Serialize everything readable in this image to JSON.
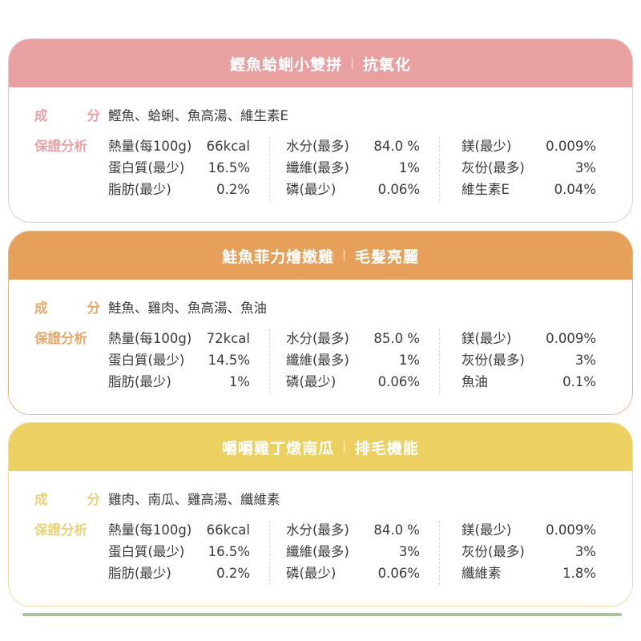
{
  "cards": [
    {
      "title": "鰹魚蛤蜊小雙拼",
      "separator": "|",
      "subtitle": "抗氧化",
      "colors": {
        "accent": "#e8a0a0",
        "border": "#e3c9d2",
        "label": "#e8a3a8"
      },
      "ingredients_label_a": "成",
      "ingredients_label_b": "分",
      "ingredients": "鰹魚、蛤蜊、魚高湯、維生素E",
      "analysis_label": "保證分析",
      "columns": [
        [
          {
            "name": "熱量(每100g)",
            "value": "66kcal"
          },
          {
            "name": "蛋白質(最少)",
            "value": "16.5%"
          },
          {
            "name": "脂肪(最少)",
            "value": "0.2%"
          }
        ],
        [
          {
            "name": "水分(最多)",
            "value": "84.0 %"
          },
          {
            "name": "纖維(最多)",
            "value": "1%"
          },
          {
            "name": "磷(最少)",
            "value": "0.06%"
          }
        ],
        [
          {
            "name": "鎂(最少)",
            "value": "0.009%"
          },
          {
            "name": "灰份(最多)",
            "value": "3%"
          },
          {
            "name": "維生素E",
            "value": "0.04%"
          }
        ]
      ]
    },
    {
      "title": "鮭魚菲力燴嫩雞",
      "separator": "|",
      "subtitle": "毛髮亮麗",
      "colors": {
        "accent": "#e6a05a",
        "border": "#d9b88e",
        "label": "#e6a86a"
      },
      "ingredients_label_a": "成",
      "ingredients_label_b": "分",
      "ingredients": "鮭魚、雞肉、魚高湯、魚油",
      "analysis_label": "保證分析",
      "columns": [
        [
          {
            "name": "熱量(每100g)",
            "value": "72kcal"
          },
          {
            "name": "蛋白質(最少)",
            "value": "14.5%"
          },
          {
            "name": "脂肪(最少)",
            "value": "1%"
          }
        ],
        [
          {
            "name": "水分(最多)",
            "value": "85.0 %"
          },
          {
            "name": "纖維(最多)",
            "value": "1%"
          },
          {
            "name": "磷(最少)",
            "value": "0.06%"
          }
        ],
        [
          {
            "name": "鎂(最少)",
            "value": "0.009%"
          },
          {
            "name": "灰份(最多)",
            "value": "3%"
          },
          {
            "name": "魚油",
            "value": "0.1%"
          }
        ]
      ]
    },
    {
      "title": "嚼嚼雞丁燉南瓜",
      "separator": "|",
      "subtitle": "排毛機能",
      "colors": {
        "accent": "#ecd061",
        "border": "#ecdba8",
        "label": "#e8d27a"
      },
      "ingredients_label_a": "成",
      "ingredients_label_b": "分",
      "ingredients": "雞肉、南瓜、雞高湯、纖維素",
      "analysis_label": "保證分析",
      "columns": [
        [
          {
            "name": "熱量(每100g)",
            "value": "66kcal"
          },
          {
            "name": "蛋白質(最少)",
            "value": "16.5%"
          },
          {
            "name": "脂肪(最少)",
            "value": "0.2%"
          }
        ],
        [
          {
            "name": "水分(最多)",
            "value": "84.0 %"
          },
          {
            "name": "纖維(最多)",
            "value": "3%"
          },
          {
            "name": "磷(最少)",
            "value": "0.06%"
          }
        ],
        [
          {
            "name": "鎂(最少)",
            "value": "0.009%"
          },
          {
            "name": "灰份(最多)",
            "value": "3%"
          },
          {
            "name": "纖維素",
            "value": "1.8%"
          }
        ]
      ]
    }
  ],
  "next_card_edge_color": "#a9c29c"
}
